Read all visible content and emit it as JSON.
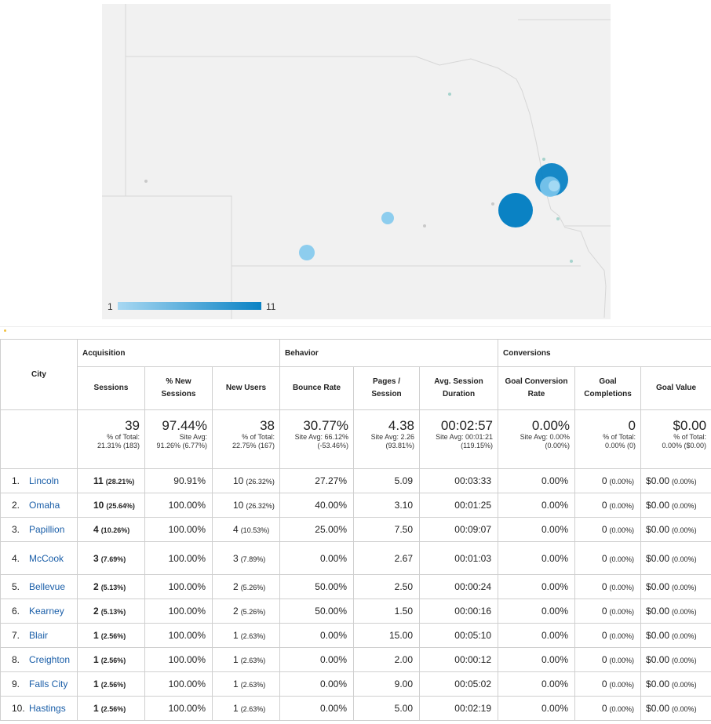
{
  "map": {
    "legend": {
      "min": "1",
      "max": "11"
    },
    "colors": {
      "background": "#f1f1f1",
      "border": "#d6d6d6",
      "bubble_dark": "#0a82c4",
      "bubble_light": "#8dcdee"
    }
  },
  "table": {
    "groups": {
      "acquisition": "Acquisition",
      "behavior": "Behavior",
      "conversions": "Conversions"
    },
    "columns": {
      "city": "City",
      "sessions": "Sessions",
      "new_sessions_1": "% New",
      "new_sessions_2": "Sessions",
      "new_users": "New Users",
      "bounce": "Bounce Rate",
      "pages_1": "Pages /",
      "pages_2": "Session",
      "duration_1": "Avg. Session",
      "duration_2": "Duration",
      "gcr_1": "Goal Conversion",
      "gcr_2": "Rate",
      "gc_1": "Goal",
      "gc_2": "Completions",
      "goal_value": "Goal Value"
    },
    "totals": {
      "sessions": {
        "value": "39",
        "l1": "% of Total:",
        "l2": "21.31% (183)"
      },
      "new_sessions": {
        "value": "97.44%",
        "l1": "Site Avg:",
        "l2": "91.26% (6.77%)"
      },
      "new_users": {
        "value": "38",
        "l1": "% of Total:",
        "l2": "22.75% (167)"
      },
      "bounce": {
        "value": "30.77%",
        "l1": "Site Avg: 66.12%",
        "l2": "(-53.46%)"
      },
      "pages": {
        "value": "4.38",
        "l1": "Site Avg: 2.26",
        "l2": "(93.81%)"
      },
      "duration": {
        "value": "00:02:57",
        "l1": "Site Avg: 00:01:21",
        "l2": "(119.15%)"
      },
      "gcr": {
        "value": "0.00%",
        "l1": "Site Avg: 0.00%",
        "l2": "(0.00%)"
      },
      "gc": {
        "value": "0",
        "l1": "% of Total:",
        "l2": "0.00% (0)"
      },
      "goal_value": {
        "value": "$0.00",
        "l1": "% of Total:",
        "l2": "0.00% ($0.00)"
      }
    },
    "rows": [
      {
        "idx": "1.",
        "city": "Lincoln",
        "sessions": "11",
        "sessions_pct": "(28.21%)",
        "new_sessions": "90.91%",
        "new_users": "10",
        "new_users_pct": "(26.32%)",
        "bounce": "27.27%",
        "pages": "5.09",
        "duration": "00:03:33",
        "gcr": "0.00%",
        "gc": "0",
        "gc_pct": "(0.00%)",
        "gv": "$0.00",
        "gv_pct": "(0.00%)"
      },
      {
        "idx": "2.",
        "city": "Omaha",
        "sessions": "10",
        "sessions_pct": "(25.64%)",
        "new_sessions": "100.00%",
        "new_users": "10",
        "new_users_pct": "(26.32%)",
        "bounce": "40.00%",
        "pages": "3.10",
        "duration": "00:01:25",
        "gcr": "0.00%",
        "gc": "0",
        "gc_pct": "(0.00%)",
        "gv": "$0.00",
        "gv_pct": "(0.00%)"
      },
      {
        "idx": "3.",
        "city": "Papillion",
        "sessions": "4",
        "sessions_pct": "(10.26%)",
        "new_sessions": "100.00%",
        "new_users": "4",
        "new_users_pct": "(10.53%)",
        "bounce": "25.00%",
        "pages": "7.50",
        "duration": "00:09:07",
        "gcr": "0.00%",
        "gc": "0",
        "gc_pct": "(0.00%)",
        "gv": "$0.00",
        "gv_pct": "(0.00%)"
      },
      {
        "idx": "4.",
        "city": "McCook",
        "sessions": "3",
        "sessions_pct": "(7.69%)",
        "new_sessions": "100.00%",
        "new_users": "3",
        "new_users_pct": "(7.89%)",
        "bounce": "0.00%",
        "pages": "2.67",
        "duration": "00:01:03",
        "gcr": "0.00%",
        "gc": "0",
        "gc_pct": "(0.00%)",
        "gv": "$0.00",
        "gv_pct": "(0.00%)"
      },
      {
        "idx": "5.",
        "city": "Bellevue",
        "sessions": "2",
        "sessions_pct": "(5.13%)",
        "new_sessions": "100.00%",
        "new_users": "2",
        "new_users_pct": "(5.26%)",
        "bounce": "50.00%",
        "pages": "2.50",
        "duration": "00:00:24",
        "gcr": "0.00%",
        "gc": "0",
        "gc_pct": "(0.00%)",
        "gv": "$0.00",
        "gv_pct": "(0.00%)"
      },
      {
        "idx": "6.",
        "city": "Kearney",
        "sessions": "2",
        "sessions_pct": "(5.13%)",
        "new_sessions": "100.00%",
        "new_users": "2",
        "new_users_pct": "(5.26%)",
        "bounce": "50.00%",
        "pages": "1.50",
        "duration": "00:00:16",
        "gcr": "0.00%",
        "gc": "0",
        "gc_pct": "(0.00%)",
        "gv": "$0.00",
        "gv_pct": "(0.00%)"
      },
      {
        "idx": "7.",
        "city": "Blair",
        "sessions": "1",
        "sessions_pct": "(2.56%)",
        "new_sessions": "100.00%",
        "new_users": "1",
        "new_users_pct": "(2.63%)",
        "bounce": "0.00%",
        "pages": "15.00",
        "duration": "00:05:10",
        "gcr": "0.00%",
        "gc": "0",
        "gc_pct": "(0.00%)",
        "gv": "$0.00",
        "gv_pct": "(0.00%)"
      },
      {
        "idx": "8.",
        "city": "Creighton",
        "sessions": "1",
        "sessions_pct": "(2.56%)",
        "new_sessions": "100.00%",
        "new_users": "1",
        "new_users_pct": "(2.63%)",
        "bounce": "0.00%",
        "pages": "2.00",
        "duration": "00:00:12",
        "gcr": "0.00%",
        "gc": "0",
        "gc_pct": "(0.00%)",
        "gv": "$0.00",
        "gv_pct": "(0.00%)"
      },
      {
        "idx": "9.",
        "city": "Falls City",
        "sessions": "1",
        "sessions_pct": "(2.56%)",
        "new_sessions": "100.00%",
        "new_users": "1",
        "new_users_pct": "(2.63%)",
        "bounce": "0.00%",
        "pages": "9.00",
        "duration": "00:05:02",
        "gcr": "0.00%",
        "gc": "0",
        "gc_pct": "(0.00%)",
        "gv": "$0.00",
        "gv_pct": "(0.00%)"
      },
      {
        "idx": "10.",
        "city": "Hastings",
        "sessions": "1",
        "sessions_pct": "(2.56%)",
        "new_sessions": "100.00%",
        "new_users": "1",
        "new_users_pct": "(2.63%)",
        "bounce": "0.00%",
        "pages": "5.00",
        "duration": "00:02:19",
        "gcr": "0.00%",
        "gc": "0",
        "gc_pct": "(0.00%)",
        "gv": "$0.00",
        "gv_pct": "(0.00%)"
      }
    ]
  }
}
